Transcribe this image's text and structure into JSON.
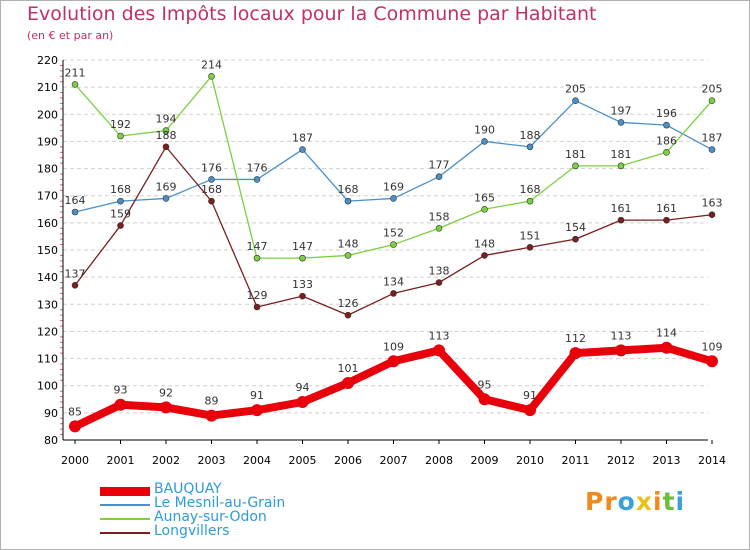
{
  "title": "Evolution des Impôts locaux pour la Commune par Habitant",
  "subtitle": "(en € et par an)",
  "brand": {
    "letters": [
      "P",
      "r",
      "o",
      "x",
      "i",
      "t",
      "i"
    ],
    "letter_colors": [
      "#f08a1c",
      "#f08a1c",
      "#3aa0d8",
      "#e8c21a",
      "#f08a1c",
      "#6cbf3a",
      "#3aa0d8"
    ],
    "icon": "proxiti-logo"
  },
  "colors": {
    "axis": "#000000",
    "grid": "#d0d0d0",
    "tick_label": "#000000",
    "data_label": "#333333",
    "legend_text": "#2f9bd6"
  },
  "chart_data": {
    "type": "line",
    "title": "Evolution des Impôts locaux pour la Commune par Habitant",
    "subtitle": "(en € et par an)",
    "x": [
      "2000",
      "2001",
      "2002",
      "2003",
      "2004",
      "2005",
      "2006",
      "2007",
      "2008",
      "2009",
      "2010",
      "2011",
      "2012",
      "2013",
      "2014"
    ],
    "ylim": [
      80,
      220
    ],
    "yticks": [
      80,
      90,
      100,
      110,
      120,
      130,
      140,
      150,
      160,
      170,
      180,
      190,
      200,
      210,
      220
    ],
    "grid": "horizontal",
    "legend_position": "bottom-left",
    "series": [
      {
        "name": "BAUQUAY",
        "color": "#e8000b",
        "values": [
          85,
          93,
          92,
          89,
          91,
          94,
          101,
          109,
          113,
          95,
          91,
          112,
          113,
          114,
          109
        ]
      },
      {
        "name": "Le Mesnil-au-Grain",
        "color": "#4a90c8",
        "values": [
          164,
          168,
          169,
          176,
          176,
          187,
          168,
          169,
          177,
          190,
          188,
          205,
          197,
          196,
          187
        ]
      },
      {
        "name": "Aunay-sur-Odon",
        "color": "#7ad040",
        "values": [
          211,
          192,
          194,
          214,
          147,
          147,
          148,
          152,
          158,
          165,
          168,
          181,
          181,
          186,
          205
        ]
      },
      {
        "name": "Longvillers",
        "color": "#7a1e1e",
        "values": [
          137,
          159,
          188,
          168,
          129,
          133,
          126,
          134,
          138,
          148,
          151,
          154,
          161,
          161,
          163
        ]
      }
    ]
  }
}
